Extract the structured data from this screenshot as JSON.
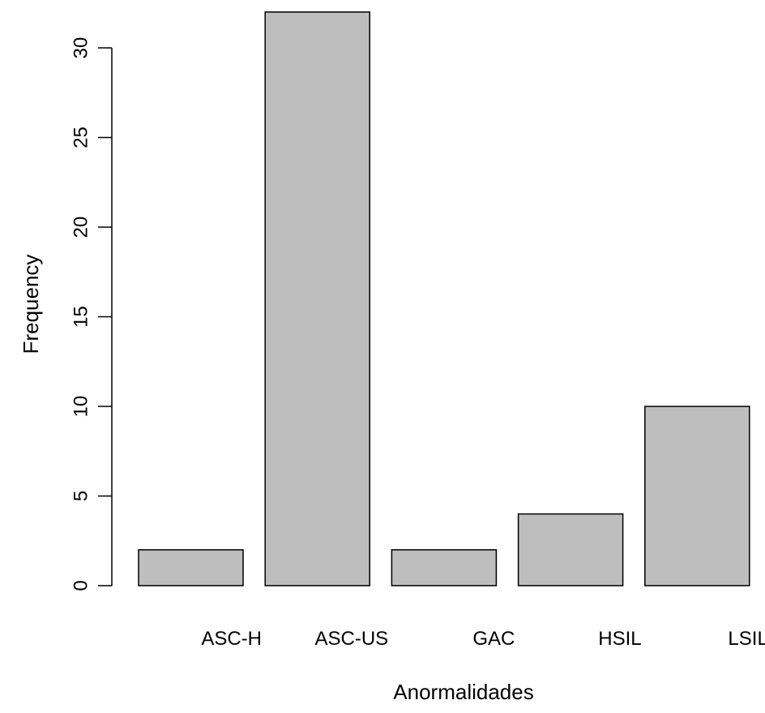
{
  "chart_data": {
    "type": "bar",
    "title": "",
    "xlabel": "Anormalidades",
    "ylabel": "Frequency",
    "categories": [
      "ASC-H",
      "ASC-US",
      "GAC",
      "HSIL",
      "LSIL"
    ],
    "values": [
      2,
      32,
      2,
      4,
      10
    ],
    "ylim": [
      0,
      30
    ],
    "yticks": [
      0,
      5,
      10,
      15,
      20,
      25,
      30
    ],
    "grid": false,
    "legend": "none",
    "bar_color": "#bebebe",
    "bar_border_color": "#000000"
  }
}
